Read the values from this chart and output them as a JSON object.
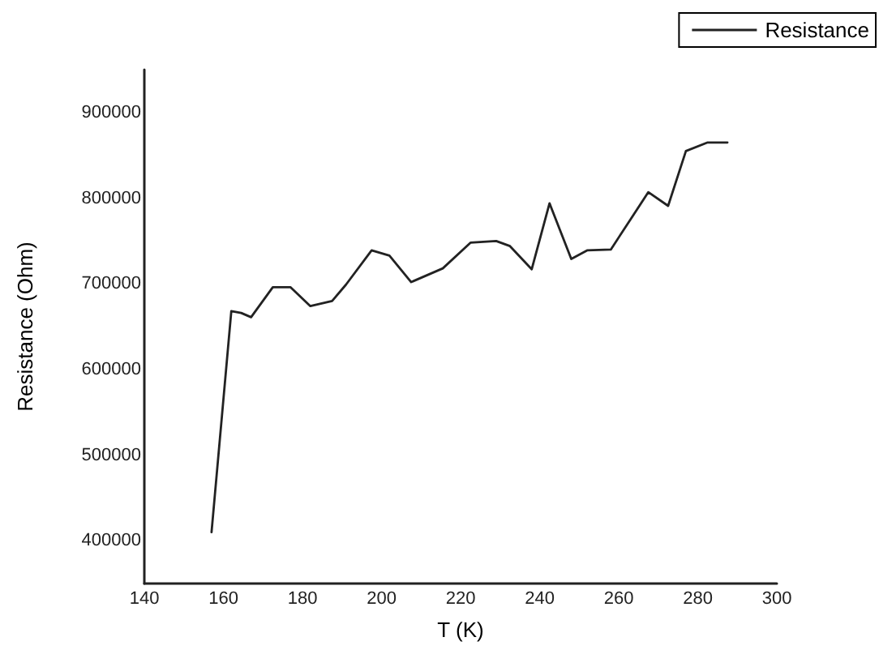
{
  "chart_data": {
    "type": "line",
    "xlabel": "T (K)",
    "ylabel": "Resistance (Ohm)",
    "x": [
      157,
      162,
      164.5,
      167,
      172.5,
      177,
      182,
      187.5,
      191,
      197.5,
      202,
      207.5,
      215.5,
      222.5,
      229,
      232.5,
      238,
      242.5,
      248,
      252,
      258,
      267.5,
      272.5,
      277,
      282.5,
      287.5
    ],
    "series": [
      {
        "name": "Resistance",
        "color": "#222222",
        "values": [
          410000,
          668000,
          666000,
          661000,
          696000,
          696000,
          674000,
          680000,
          699000,
          739000,
          733000,
          702000,
          718000,
          748000,
          750000,
          744000,
          717000,
          794000,
          729000,
          739000,
          740000,
          807000,
          791000,
          855000,
          865000,
          865000
        ]
      }
    ],
    "xlim": [
      140,
      300
    ],
    "xticks": [
      140,
      160,
      180,
      200,
      220,
      240,
      260,
      280,
      300
    ],
    "ylim": [
      350000,
      950000
    ],
    "yticks": [
      400000,
      500000,
      600000,
      700000,
      800000,
      900000
    ],
    "grid": false,
    "legend": "top right",
    "marker": "none",
    "line_style": "solid"
  }
}
